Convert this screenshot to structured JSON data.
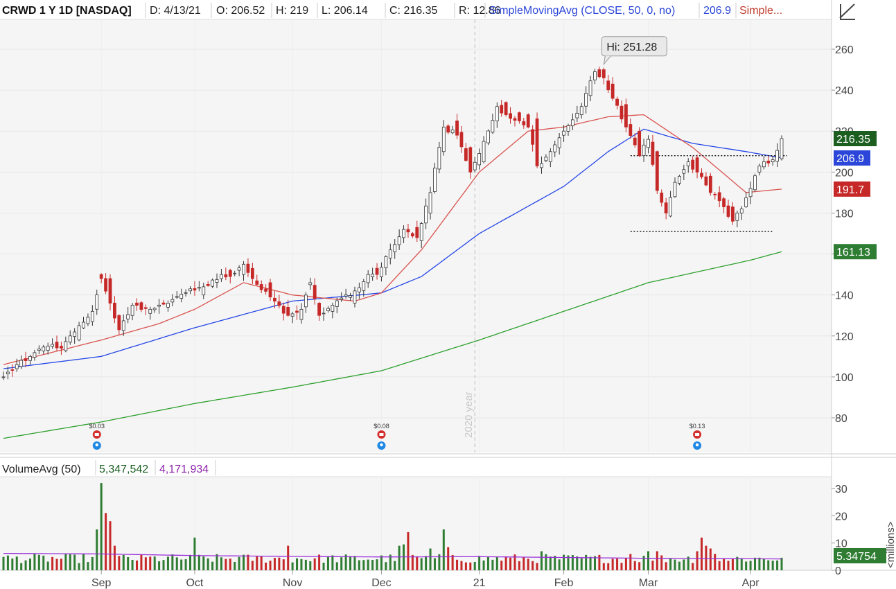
{
  "header": {
    "symbol": "CRWD 1 Y 1D [NASDAQ]",
    "date": "D: 4/13/21",
    "open": "O: 206.52",
    "high": "H: 219",
    "low": "L: 206.14",
    "close": "C: 216.35",
    "range": "R: 12.86",
    "sma_study": "SimpleMovingAvg (CLOSE, 50, 0, no)",
    "sma_value": "206.9",
    "sma_more": "Simple...",
    "tool_icon": "drawing-tool-icon"
  },
  "volume_header": {
    "study": "VolumeAvg (50)",
    "volume": "5,347,542",
    "avg": "4,171,934"
  },
  "colors": {
    "up": "#2e7d32",
    "down": "#c62828",
    "sma20": "#d9534f",
    "sma50": "#2546e6",
    "sma200": "#2ea02e",
    "avgvol": "#9b30d9",
    "header_blue": "#2b46d8",
    "header_red": "#c0392b",
    "header_purple": "#8e24aa",
    "header_green": "#1b5e20"
  },
  "chart_data": [
    {
      "type": "candlestick",
      "title": "CRWD 1 Y 1D [NASDAQ]",
      "y_ticks": [
        "80",
        "100",
        "120",
        "140",
        "160",
        "180",
        "200",
        "220",
        "240",
        "260"
      ],
      "x_labels": [
        "Sep",
        "Oct",
        "Nov",
        "Dec",
        "21",
        "Feb",
        "Mar",
        "Apr"
      ],
      "x_label_dates": [
        "2020-09-01",
        "2020-10-01",
        "2020-11-02",
        "2020-12-01",
        "2021-01-04",
        "2021-02-01",
        "2021-03-01",
        "2021-04-01"
      ],
      "ylim": [
        66,
        274
      ],
      "grid": true,
      "year_marker": {
        "label": "2020 year",
        "date": "2020-12-31"
      },
      "high_marker": {
        "label": "Hi: 251.28",
        "value": 251.28,
        "date": "2021-02-12"
      },
      "last_labels": [
        {
          "label": "216.35",
          "value": 216.35,
          "color": "#1b5e20"
        },
        {
          "label": "206.9",
          "value": 206.9,
          "color": "#2b46d8"
        },
        {
          "label": "191.7",
          "value": 191.7,
          "color": "#c62828"
        },
        {
          "label": "161.13",
          "value": 161.13,
          "color": "#2e7d32"
        }
      ],
      "levels": [
        {
          "value": 208,
          "from": "2021-02-23",
          "to": "2021-04-13"
        },
        {
          "value": 171,
          "from": "2021-02-23",
          "to": "2021-04-08"
        }
      ],
      "dividends": [
        {
          "label": "$0.03",
          "date": "2020-08-31"
        },
        {
          "label": "$0.08",
          "date": "2020-12-01"
        },
        {
          "label": "$0.13",
          "date": "2021-03-16"
        }
      ],
      "ohlc_anchors": [
        [
          "2020-07-31",
          100,
          100
        ],
        [
          "2020-08-05",
          104,
          106
        ],
        [
          "2020-08-10",
          108,
          110
        ],
        [
          "2020-08-14",
          113,
          115
        ],
        [
          "2020-08-19",
          115,
          114
        ],
        [
          "2020-08-25",
          118,
          125
        ],
        [
          "2020-08-28",
          127,
          132
        ],
        [
          "2020-09-01",
          150,
          148
        ],
        [
          "2020-09-03",
          148,
          136
        ],
        [
          "2020-09-08",
          130,
          123
        ],
        [
          "2020-09-11",
          130,
          135
        ],
        [
          "2020-09-17",
          131,
          133
        ],
        [
          "2020-09-23",
          134,
          136
        ],
        [
          "2020-09-30",
          142,
          143
        ],
        [
          "2020-10-05",
          140,
          144
        ],
        [
          "2020-10-09",
          148,
          150
        ],
        [
          "2020-10-13",
          152,
          149
        ],
        [
          "2020-10-16",
          150,
          155
        ],
        [
          "2020-10-20",
          153,
          148
        ],
        [
          "2020-10-26",
          146,
          139
        ],
        [
          "2020-10-30",
          134,
          130
        ],
        [
          "2020-11-04",
          128,
          133
        ],
        [
          "2020-11-06",
          145,
          146
        ],
        [
          "2020-11-10",
          136,
          130
        ],
        [
          "2020-11-13",
          132,
          135
        ],
        [
          "2020-11-20",
          136,
          142
        ],
        [
          "2020-11-25",
          146,
          150
        ],
        [
          "2020-11-30",
          153,
          150
        ],
        [
          "2020-12-03",
          158,
          162
        ],
        [
          "2020-12-08",
          168,
          172
        ],
        [
          "2020-12-11",
          173,
          168
        ],
        [
          "2020-12-16",
          180,
          190
        ],
        [
          "2020-12-21",
          210,
          222
        ],
        [
          "2020-12-24",
          225,
          218
        ],
        [
          "2020-12-30",
          212,
          200
        ],
        [
          "2021-01-05",
          205,
          215
        ],
        [
          "2021-01-08",
          225,
          232
        ],
        [
          "2021-01-12",
          234,
          228
        ],
        [
          "2021-01-15",
          229,
          225
        ],
        [
          "2021-01-20",
          228,
          222
        ],
        [
          "2021-01-22",
          226,
          203
        ],
        [
          "2021-01-27",
          205,
          210
        ],
        [
          "2021-02-01",
          218,
          220
        ],
        [
          "2021-02-05",
          228,
          232
        ],
        [
          "2021-02-10",
          245,
          249
        ],
        [
          "2021-02-12",
          250,
          246
        ],
        [
          "2021-02-17",
          243,
          236
        ],
        [
          "2021-02-22",
          233,
          222
        ],
        [
          "2021-02-25",
          220,
          208
        ],
        [
          "2021-03-01",
          212,
          216
        ],
        [
          "2021-03-03",
          210,
          191
        ],
        [
          "2021-03-05",
          185,
          180
        ],
        [
          "2021-03-09",
          188,
          195
        ],
        [
          "2021-03-12",
          203,
          205
        ],
        [
          "2021-03-16",
          207,
          200
        ],
        [
          "2021-03-19",
          198,
          190
        ],
        [
          "2021-03-23",
          190,
          186
        ],
        [
          "2021-03-26",
          183,
          176
        ],
        [
          "2021-03-30",
          180,
          182
        ],
        [
          "2021-04-01",
          188,
          192
        ],
        [
          "2021-04-06",
          200,
          203
        ],
        [
          "2021-04-09",
          205,
          206
        ],
        [
          "2021-04-13",
          206.52,
          216.35
        ]
      ],
      "sma50_anchors": [
        [
          "2020-07-31",
          104
        ],
        [
          "2020-09-01",
          110
        ],
        [
          "2020-10-01",
          124
        ],
        [
          "2020-11-02",
          137
        ],
        [
          "2020-12-01",
          141
        ],
        [
          "2020-12-14",
          149
        ],
        [
          "2021-01-04",
          170
        ],
        [
          "2021-02-01",
          193
        ],
        [
          "2021-02-16",
          210
        ],
        [
          "2021-02-26",
          221
        ],
        [
          "2021-03-15",
          214
        ],
        [
          "2021-03-31",
          210
        ],
        [
          "2021-04-13",
          206.9
        ]
      ],
      "sma20_anchors": [
        [
          "2020-07-31",
          106
        ],
        [
          "2020-09-01",
          118
        ],
        [
          "2020-09-21",
          126
        ],
        [
          "2020-10-01",
          133
        ],
        [
          "2020-10-16",
          146
        ],
        [
          "2020-11-02",
          140
        ],
        [
          "2020-11-20",
          137
        ],
        [
          "2020-12-01",
          141
        ],
        [
          "2020-12-14",
          162
        ],
        [
          "2021-01-04",
          200
        ],
        [
          "2021-01-20",
          220
        ],
        [
          "2021-02-01",
          222
        ],
        [
          "2021-02-16",
          227
        ],
        [
          "2021-02-26",
          228
        ],
        [
          "2021-03-15",
          212
        ],
        [
          "2021-03-31",
          190
        ],
        [
          "2021-04-13",
          191.7
        ]
      ],
      "sma200_anchors": [
        [
          "2020-07-31",
          70
        ],
        [
          "2020-09-01",
          78
        ],
        [
          "2020-10-01",
          87
        ],
        [
          "2020-11-02",
          95
        ],
        [
          "2020-12-01",
          103
        ],
        [
          "2021-01-04",
          118
        ],
        [
          "2021-02-01",
          132
        ],
        [
          "2021-03-01",
          146
        ],
        [
          "2021-04-01",
          157
        ],
        [
          "2021-04-13",
          161.13
        ]
      ]
    },
    {
      "type": "bar",
      "title": "VolumeAvg (50)",
      "ylabel": "<millions>",
      "y_ticks": [
        "0",
        "10",
        "20",
        "30"
      ],
      "ylim": [
        0,
        33
      ],
      "last_label": {
        "label": "5.34754",
        "value": 5.34754
      },
      "volume_spikes": [
        [
          "2020-08-31",
          15
        ],
        [
          "2020-09-01",
          32
        ],
        [
          "2020-09-02",
          21
        ],
        [
          "2020-09-03",
          18
        ],
        [
          "2020-09-04",
          9
        ],
        [
          "2020-10-01",
          12
        ],
        [
          "2020-10-30",
          9
        ],
        [
          "2020-12-07",
          9
        ],
        [
          "2020-12-08",
          9.5
        ],
        [
          "2020-12-09",
          14
        ],
        [
          "2020-12-16",
          8
        ],
        [
          "2020-12-21",
          15
        ],
        [
          "2020-12-22",
          8.5
        ],
        [
          "2021-01-25",
          7
        ],
        [
          "2021-02-23",
          6
        ],
        [
          "2021-03-01",
          7
        ],
        [
          "2021-03-03",
          7
        ],
        [
          "2021-03-16",
          7
        ],
        [
          "2021-03-17",
          12
        ],
        [
          "2021-03-18",
          9
        ],
        [
          "2021-03-19",
          8
        ],
        [
          "2021-03-22",
          6
        ]
      ],
      "avg_anchors": [
        [
          "2020-07-31",
          6.2
        ],
        [
          "2020-09-01",
          6.0
        ],
        [
          "2020-10-01",
          5.4
        ],
        [
          "2020-11-02",
          5.1
        ],
        [
          "2020-12-01",
          4.9
        ],
        [
          "2021-01-04",
          5.0
        ],
        [
          "2021-02-01",
          4.7
        ],
        [
          "2021-03-01",
          4.4
        ],
        [
          "2021-04-13",
          4.17
        ]
      ]
    }
  ]
}
